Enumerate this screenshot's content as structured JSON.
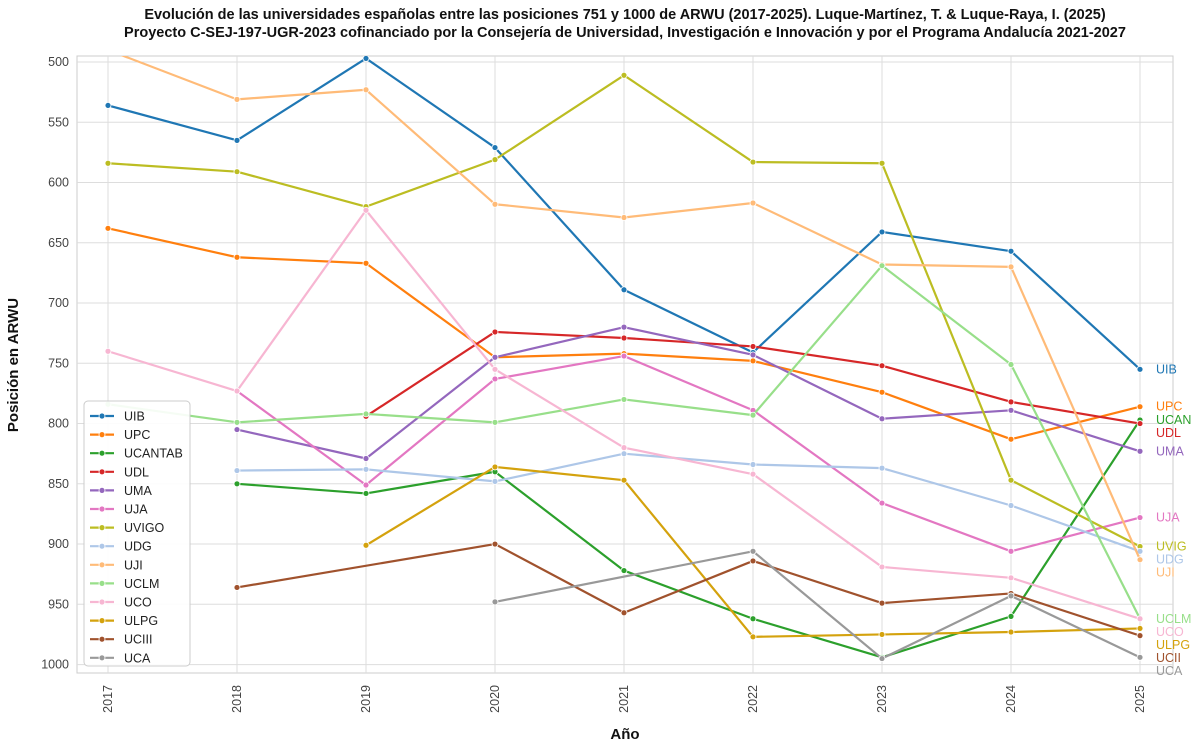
{
  "chart_data": {
    "type": "line",
    "title": "Evolución de las universidades españolas entre las posiciones 751 y 1000 de ARWU (2017-2025). Luque-Martínez, T. & Luque-Raya, I. (2025)",
    "subtitle": "Proyecto C-SEJ-197-UGR-2023 cofinanciado por la Consejería de Universidad, Investigación e Innovación y por el Programa Andalucía 2021-2027",
    "xlabel": "Año",
    "ylabel": "Posición en ARWU",
    "x": [
      "2017",
      "2018",
      "2019",
      "2020",
      "2021",
      "2022",
      "2023",
      "2024",
      "2025"
    ],
    "yticks": [
      "500",
      "550",
      "600",
      "650",
      "700",
      "750",
      "800",
      "850",
      "900",
      "950",
      "1000"
    ],
    "ylim": [
      1007,
      495
    ],
    "y_inverted": true,
    "grid": true,
    "legend_position": "bottom-left",
    "series": [
      {
        "name": "UIB",
        "end_label": "UIB",
        "color": "#1f77b4",
        "values": [
          536,
          565,
          497,
          571,
          689,
          741,
          641,
          657,
          755
        ]
      },
      {
        "name": "UPC",
        "end_label": "UPC",
        "color": "#ff7f0e",
        "values": [
          638,
          662,
          667,
          745,
          742,
          748,
          774,
          813,
          786
        ]
      },
      {
        "name": "UCANTAB",
        "end_label": "UCAN",
        "color": "#2ca02c",
        "values": [
          null,
          850,
          858,
          840,
          922,
          962,
          994,
          960,
          797
        ]
      },
      {
        "name": "UDL",
        "end_label": "UDL",
        "color": "#d62728",
        "values": [
          null,
          null,
          794,
          724,
          729,
          736,
          752,
          782,
          800
        ]
      },
      {
        "name": "UMA",
        "end_label": "UMA",
        "color": "#9467bd",
        "values": [
          null,
          805,
          829,
          745,
          720,
          743,
          796,
          789,
          823
        ]
      },
      {
        "name": "UJA",
        "end_label": "UJA",
        "color": "#e377c2",
        "values": [
          null,
          773,
          851,
          763,
          744,
          789,
          866,
          906,
          878
        ]
      },
      {
        "name": "UVIGO",
        "end_label": "UVIG",
        "color": "#bcbd22",
        "values": [
          584,
          591,
          620,
          581,
          511,
          583,
          584,
          847,
          902
        ]
      },
      {
        "name": "UDG",
        "end_label": "UDG",
        "color": "#aec7e8",
        "values": [
          null,
          839,
          838,
          848,
          825,
          834,
          837,
          868,
          906
        ]
      },
      {
        "name": "UJI",
        "end_label": "UJI",
        "color": "#ffbb78",
        "values": [
          490,
          531,
          523,
          618,
          629,
          617,
          668,
          670,
          913
        ]
      },
      {
        "name": "UCLM",
        "end_label": "UCLM",
        "color": "#98df8a",
        "values": [
          784,
          799,
          792,
          799,
          780,
          793,
          669,
          751,
          962
        ]
      },
      {
        "name": "UCO",
        "end_label": "UCO",
        "color": "#f7b6d2",
        "values": [
          740,
          773,
          623,
          755,
          820,
          842,
          919,
          928,
          962
        ]
      },
      {
        "name": "ULPG",
        "end_label": "ULPG",
        "color": "#d4a20d",
        "values": [
          null,
          null,
          901,
          836,
          847,
          977,
          975,
          973,
          970
        ]
      },
      {
        "name": "UCIII",
        "end_label": "UCII",
        "color": "#a0522d",
        "values": [
          null,
          936,
          null,
          900,
          957,
          914,
          949,
          941,
          976
        ]
      },
      {
        "name": "UCA",
        "end_label": "UCA",
        "color": "#999999",
        "values": [
          null,
          null,
          null,
          948,
          null,
          906,
          995,
          943,
          994
        ]
      }
    ]
  }
}
